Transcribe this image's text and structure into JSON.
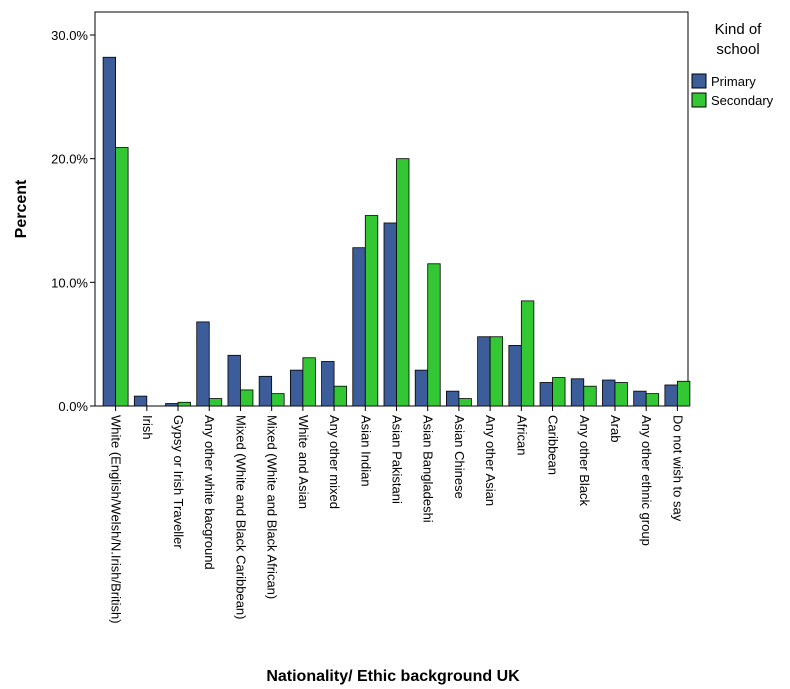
{
  "chart_data": {
    "type": "bar",
    "xlabel": "Nationality/ Ethic background UK",
    "ylabel": "Percent",
    "ylim": [
      0,
      30
    ],
    "yticks": [
      0,
      10,
      20,
      30
    ],
    "ytick_labels": [
      "0.0%",
      "10.0%",
      "20.0%",
      "30.0%"
    ],
    "grid": false,
    "legend": {
      "title": "Kind of school",
      "title_lines": [
        "Kind of",
        "school"
      ],
      "placement": "right"
    },
    "categories": [
      "White (English/Welsh/N.Irish/British)",
      "Irish",
      "Gypsy or Irish Traveller",
      "Any other white bacground",
      "Mixed (White and Black Caribbean)",
      "Mixed (White and Black African)",
      "White and Asian",
      "Any other mixed",
      "Asian Indian",
      "Asian Pakistani",
      "Asian Bangladeshi",
      "Asian Chinese",
      "Any other Asian",
      "African",
      "Caribbean",
      "Any other Black",
      "Arab",
      "Any other ethnic group",
      "Do not wish to say"
    ],
    "series": [
      {
        "name": "Primary",
        "color": "#3c5d9a",
        "values": [
          28.2,
          0.8,
          0.2,
          6.8,
          4.1,
          2.4,
          2.9,
          3.6,
          12.8,
          14.8,
          2.9,
          1.2,
          5.6,
          4.9,
          1.9,
          2.2,
          2.1,
          1.2,
          1.7
        ]
      },
      {
        "name": "Secondary",
        "color": "#33c733",
        "values": [
          20.9,
          0.0,
          0.3,
          0.6,
          1.3,
          1.0,
          3.9,
          1.6,
          15.4,
          20.0,
          11.5,
          0.6,
          5.6,
          8.5,
          2.3,
          1.6,
          1.9,
          1.0,
          2.0
        ]
      }
    ]
  }
}
